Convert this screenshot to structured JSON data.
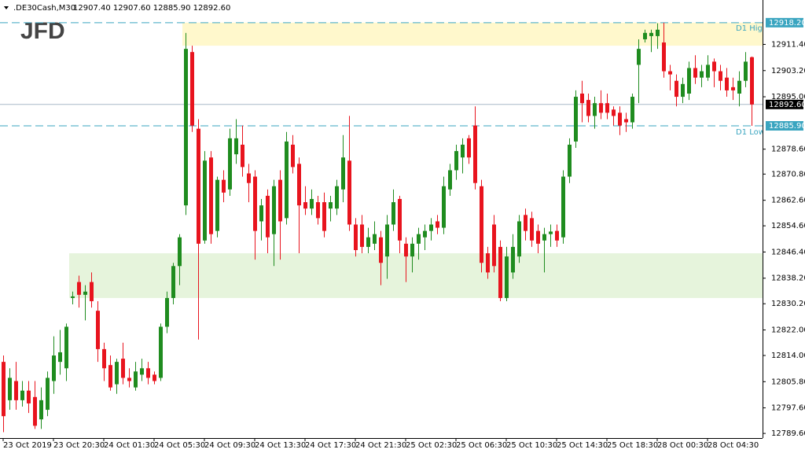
{
  "chart_data": {
    "type": "candlestick",
    "title": ".DE30Cash,M30",
    "ohlc_text": "12907.40 12907.60 12885.90 12892.60",
    "logo": "JFD",
    "up_color": "#1f8c1f",
    "down_color": "#e8141e",
    "categories": [
      "23 Oct 2019",
      null,
      null,
      null,
      null,
      null,
      null,
      null,
      "23 Oct 20:30",
      null,
      null,
      null,
      null,
      null,
      null,
      null,
      "24 Oct 01:30",
      null,
      null,
      null,
      null,
      null,
      null,
      null,
      "24 Oct 05:30",
      null,
      null,
      null,
      null,
      null,
      null,
      null,
      "24 Oct 09:30",
      null,
      null,
      null,
      null,
      null,
      null,
      null,
      "24 Oct 13:30",
      null,
      null,
      null,
      null,
      null,
      null,
      null,
      "24 Oct 17:30",
      null,
      null,
      null,
      null,
      null,
      null,
      null,
      "24 Oct 21:30",
      null,
      null,
      null,
      null,
      null,
      null,
      null,
      "25 Oct 02:30",
      null,
      null,
      null,
      null,
      null,
      null,
      null,
      "25 Oct 06:30",
      null,
      null,
      null,
      null,
      null,
      null,
      null,
      "25 Oct 10:30",
      null,
      null,
      null,
      null,
      null,
      null,
      null,
      "25 Oct 14:30",
      null,
      null,
      null,
      null,
      null,
      null,
      null,
      "25 Oct 18:30",
      null,
      null,
      null,
      null,
      null,
      null,
      null,
      "28 Oct 00:30",
      null,
      null,
      null,
      null,
      null,
      null,
      null,
      "28 Oct 04:30",
      null,
      null,
      null,
      null,
      null,
      null,
      null
    ],
    "open": [
      12812,
      12800,
      12806,
      12800,
      12803,
      12801,
      12794,
      12797,
      12806,
      12812,
      12810,
      12832,
      12837,
      12833,
      12837,
      12828,
      12816,
      12811,
      12805,
      12813,
      12807,
      12804,
      12808,
      12810,
      12808,
      12807,
      12823,
      12832,
      12842,
      12861,
      12909,
      12885,
      12850,
      12876,
      12853,
      12869,
      12866,
      12877,
      12880,
      12871,
      12870,
      12856,
      12864,
      12852,
      12869,
      12857,
      12880,
      12874,
      12862,
      12860,
      12862,
      12862,
      12860,
      12860,
      12866,
      12875,
      12855,
      12855,
      12848,
      12849,
      12851,
      12845,
      12855,
      12863,
      12849,
      12845,
      12849,
      12851,
      12853,
      12856,
      12854,
      12866,
      12872,
      12876,
      12882,
      12886,
      12867,
      12846,
      12855,
      12848,
      12832,
      12840,
      12845,
      12858,
      12857,
      12853,
      12850,
      12852,
      12853,
      12851,
      12870,
      12881,
      12896,
      12894,
      12889,
      12893,
      12893,
      12891,
      12890,
      12888,
      12887,
      12905,
      12913,
      12914,
      12914,
      12912,
      12903,
      12900,
      12895,
      12896,
      12904,
      12901,
      12901,
      12906,
      12903,
      12901,
      12898,
      12896,
      12900,
      12907.4
    ],
    "high": [
      12814,
      12810,
      12812,
      12806,
      12806,
      12806,
      12804,
      12809,
      12820,
      12822,
      12824,
      12834,
      12839,
      12836,
      12840,
      12831,
      12818,
      12814,
      12813,
      12818,
      12810,
      12812,
      12813,
      12812,
      12809,
      12824,
      12834,
      12843,
      12852,
      12915,
      12911,
      12888,
      12878,
      12878,
      12870,
      12872,
      12885,
      12888,
      12886,
      12874,
      12872,
      12863,
      12866,
      12869,
      12872,
      12884,
      12883,
      12876,
      12867,
      12866,
      12864,
      12865,
      12864,
      12869,
      12883,
      12889,
      12857,
      12858,
      12854,
      12856,
      12853,
      12858,
      12866,
      12864,
      12851,
      12851,
      12854,
      12855,
      12857,
      12858,
      12870,
      12874,
      12880,
      12882,
      12883,
      12892,
      12869,
      12848,
      12858,
      12850,
      12848,
      12852,
      12858,
      12860,
      12859,
      12855,
      12854,
      12855,
      12855,
      12872,
      12882,
      12897,
      12900,
      12896,
      12895,
      12897,
      12896,
      12892,
      12892,
      12890,
      12896,
      12913,
      12916,
      12916,
      12918,
      12918.2,
      12905,
      12902,
      12901,
      12906,
      12908,
      12905,
      12908,
      12907,
      12905,
      12904,
      12901,
      12903,
      12909,
      12907.6
    ],
    "low": [
      12790,
      12797,
      12797,
      12798,
      12796,
      12791,
      12791,
      12795,
      12802,
      12808,
      12806,
      12830,
      12829,
      12825,
      12829,
      12812,
      12806,
      12803,
      12802,
      12805,
      12804,
      12803,
      12806,
      12805,
      12805,
      12806,
      12821,
      12830,
      12836,
      12858,
      12884,
      12819,
      12849,
      12849,
      12851,
      12862,
      12864,
      12874,
      12870,
      12862,
      12844,
      12850,
      12846,
      12842,
      12844,
      12855,
      12871,
      12846,
      12858,
      12858,
      12855,
      12851,
      12856,
      12858,
      12862,
      12853,
      12845,
      12846,
      12846,
      12847,
      12836,
      12838,
      12853,
      12846,
      12837,
      12840,
      12844,
      12847,
      12850,
      12852,
      12852,
      12864,
      12869,
      12871,
      12874,
      12866,
      12840,
      12838,
      12840,
      12831,
      12831,
      12838,
      12843,
      12850,
      12848,
      12846,
      12840,
      12848,
      12848,
      12849,
      12868,
      12879,
      12887,
      12887,
      12885,
      12888,
      12888,
      12886,
      12883,
      12884,
      12885,
      12893,
      12912,
      12909,
      12910,
      12901,
      12897,
      12892,
      12893,
      12894,
      12899,
      12898,
      12900,
      12898,
      12897,
      12895,
      12894,
      12892,
      12898,
      12885.9
    ],
    "close": [
      12795,
      12807,
      12800,
      12803,
      12799,
      12792,
      12800,
      12807,
      12814,
      12815,
      12823,
      12832.5,
      12833,
      12834,
      12831,
      12816,
      12810,
      12804,
      12812,
      12807,
      12806,
      12809,
      12810,
      12807,
      12806,
      12823,
      12832,
      12842,
      12851,
      12910,
      12886,
      12849,
      12875,
      12852,
      12869,
      12865,
      12882,
      12882,
      12873,
      12868,
      12853,
      12861,
      12851,
      12867,
      12856,
      12881,
      12873,
      12861,
      12860,
      12863,
      12857,
      12853,
      12862,
      12867,
      12876,
      12855,
      12847,
      12848,
      12851,
      12852,
      12843,
      12855,
      12862,
      12850,
      12845,
      12849,
      12852,
      12853,
      12855,
      12854,
      12867,
      12872,
      12878,
      12880,
      12876,
      12868,
      12843,
      12840,
      12842,
      12832,
      12845,
      12848,
      12856,
      12853,
      12850,
      12849,
      12852,
      12852.8,
      12850,
      12870,
      12880,
      12895,
      12893,
      12889,
      12893,
      12890,
      12890,
      12889,
      12886,
      12887,
      12895,
      12910,
      12915,
      12915,
      12916,
      12903,
      12902,
      12895,
      12899,
      12904,
      12901,
      12903,
      12905,
      12903,
      12900,
      12897,
      12897,
      12900,
      12906,
      12892.6
    ],
    "ylim": [
      12788.15,
      12925.3
    ],
    "yticks": [
      {
        "value": 12789.6,
        "label": "12789.60"
      },
      {
        "value": 12797.6,
        "label": "12797.60"
      },
      {
        "value": 12805.8,
        "label": "12805.80"
      },
      {
        "value": 12814,
        "label": "12814.00"
      },
      {
        "value": 12822,
        "label": "12822.00"
      },
      {
        "value": 12830.2,
        "label": "12830.20"
      },
      {
        "value": 12838.2,
        "label": "12838.20"
      },
      {
        "value": 12846.4,
        "label": "12846.40"
      },
      {
        "value": 12854.6,
        "label": "12854.60"
      },
      {
        "value": 12862.6,
        "label": "12862.60"
      },
      {
        "value": 12870.8,
        "label": "12870.80"
      },
      {
        "value": 12878.6,
        "label": "12878.60"
      },
      {
        "value": 12895,
        "label": "12895.00"
      },
      {
        "value": 12903.2,
        "label": "12903.20"
      },
      {
        "value": 12911.4,
        "label": "12911.40"
      }
    ],
    "zones": [
      {
        "from": 12911,
        "to": 12918.2,
        "start_index": 29,
        "color": "#fff8cc"
      },
      {
        "from": 12832,
        "to": 12846,
        "start_index": 11,
        "color": "#e6f4dc"
      }
    ],
    "levels": [
      {
        "name": "D1 Hig",
        "value": 12918.2,
        "label": "12918.20",
        "color": "#3aa5c0"
      },
      {
        "name": "D1 Low",
        "value": 12885.9,
        "label": "12885.90",
        "color": "#3aa5c0"
      }
    ],
    "current_price": {
      "value": 12892.6,
      "label": "12892.60",
      "color": "#a8b8c8"
    }
  }
}
